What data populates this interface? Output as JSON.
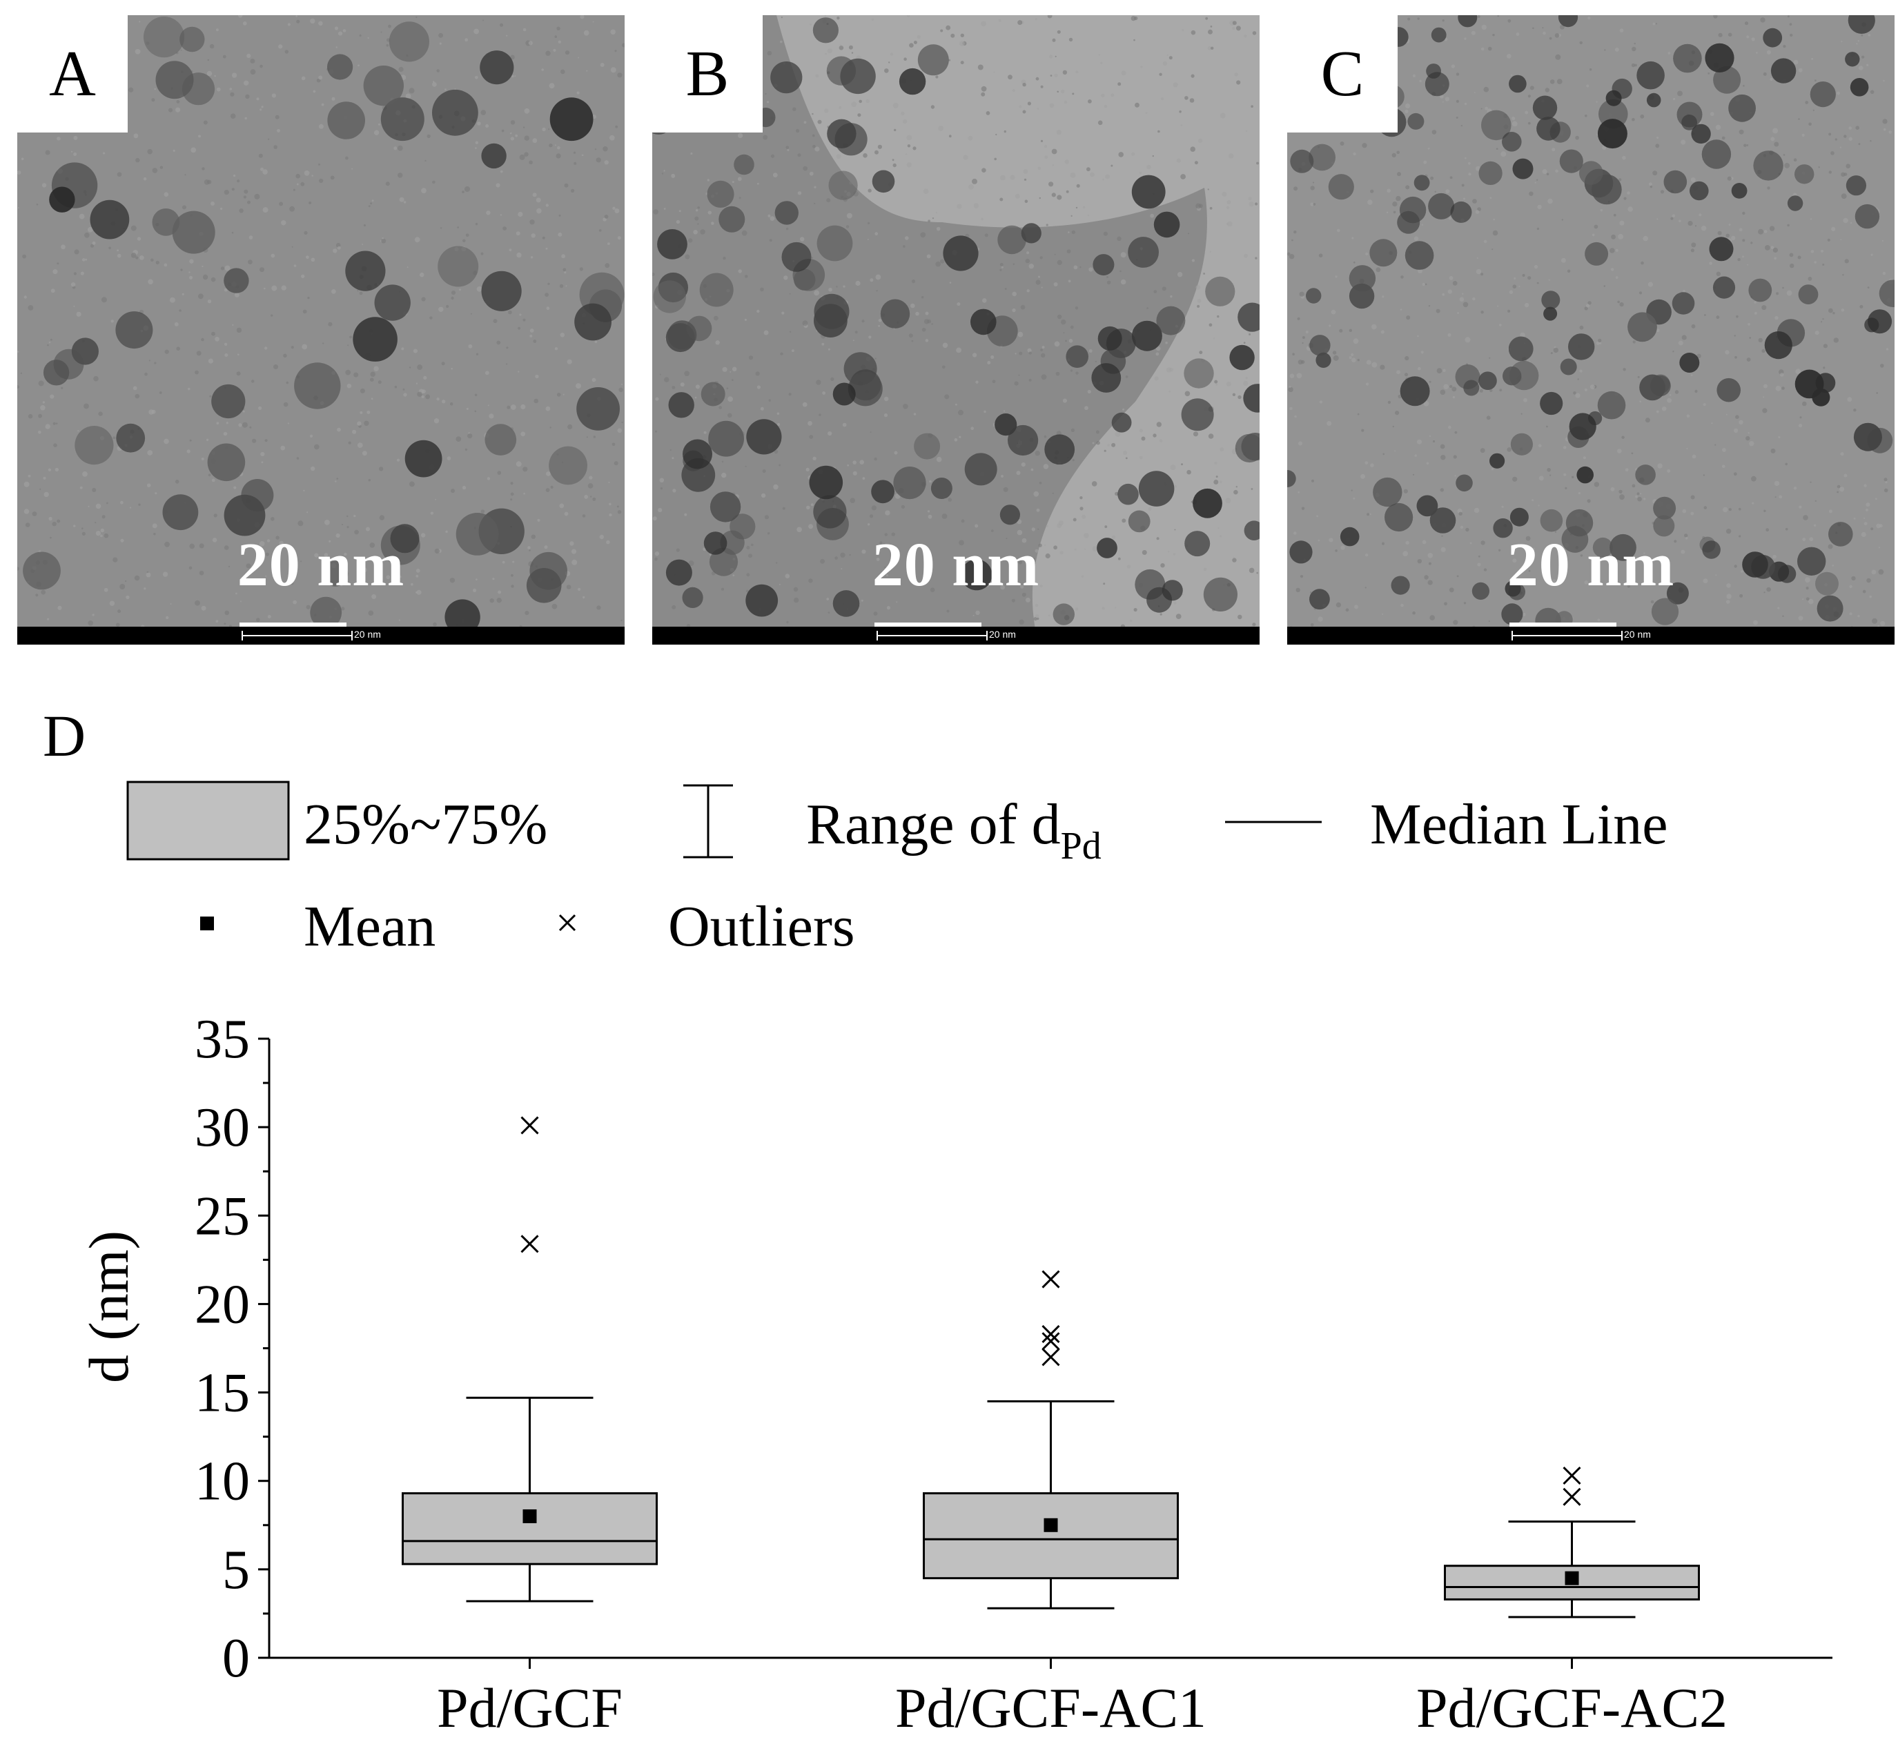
{
  "panels": [
    {
      "letter": "A",
      "scale_label": "20 nm",
      "info_label": "20 nm"
    },
    {
      "letter": "B",
      "scale_label": "20 nm",
      "info_label": "20 nm"
    },
    {
      "letter": "C",
      "scale_label": "20 nm",
      "info_label": "20 nm"
    }
  ],
  "chart_panel_letter": "D",
  "legend": {
    "box": "25%~75%",
    "range": "Range of d",
    "range_sub": "Pd",
    "median": "Median Line",
    "mean": "Mean",
    "outliers": "Outliers"
  },
  "colors": {
    "box_fill": "#c0c0c0",
    "stroke": "#000000"
  },
  "chart_data": {
    "type": "box",
    "categories": [
      "Pd/GCF",
      "Pd/GCF-AC1",
      "Pd/GCF-AC2"
    ],
    "ylabel": "d (nm)",
    "xlabel": "",
    "ylim": [
      0,
      35
    ],
    "yticks": [
      0,
      5,
      10,
      15,
      20,
      25,
      30,
      35
    ],
    "grid": false,
    "boxes": [
      {
        "name": "Pd/GCF",
        "whisker_low": 3.2,
        "q1": 5.3,
        "median": 6.6,
        "q3": 9.3,
        "whisker_high": 14.7,
        "mean": 8.0,
        "outliers": [
          23.4,
          30.1
        ]
      },
      {
        "name": "Pd/GCF-AC1",
        "whisker_low": 2.8,
        "q1": 4.5,
        "median": 6.7,
        "q3": 9.3,
        "whisker_high": 14.5,
        "mean": 7.5,
        "outliers": [
          17.0,
          17.9,
          18.3,
          21.4
        ]
      },
      {
        "name": "Pd/GCF-AC2",
        "whisker_low": 2.3,
        "q1": 3.3,
        "median": 4.0,
        "q3": 5.2,
        "whisker_high": 7.7,
        "mean": 4.5,
        "outliers": [
          9.1,
          10.3
        ]
      }
    ]
  }
}
